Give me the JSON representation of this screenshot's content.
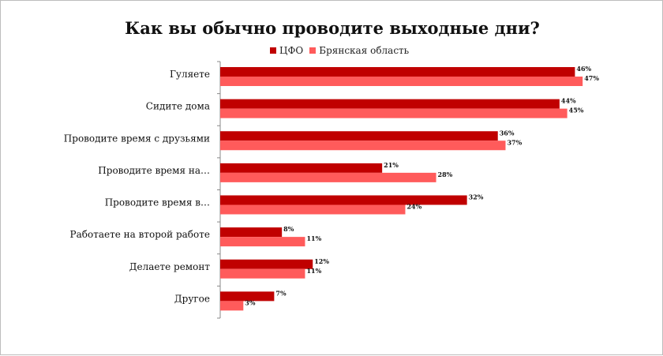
{
  "chart_data": {
    "type": "bar",
    "orientation": "horizontal",
    "title": "Как вы обычно проводите выходные дни?",
    "xlabel": "",
    "ylabel": "",
    "xlim": [
      0,
      50
    ],
    "grid": false,
    "legend_position": "top",
    "categories": [
      "Гуляете",
      "Сидите дома",
      "Проводите время с друзьями",
      "Проводите время на…",
      "Проводите время в…",
      "Работаете на второй работе",
      "Делаете ремонт",
      "Другое"
    ],
    "series": [
      {
        "name": "ЦФО",
        "color": "#c00000",
        "values": [
          46,
          44,
          36,
          21,
          32,
          8,
          12,
          7
        ],
        "labels": [
          "46%",
          "44%",
          "36%",
          "21%",
          "32%",
          "8%",
          "12%",
          "7%"
        ]
      },
      {
        "name": "Брянская область",
        "color": "#ff5b5b",
        "values": [
          47,
          45,
          37,
          28,
          24,
          11,
          11,
          3
        ],
        "labels": [
          "47%",
          "45%",
          "37%",
          "28%",
          "24%",
          "11%",
          "11%",
          "3%"
        ]
      }
    ]
  }
}
